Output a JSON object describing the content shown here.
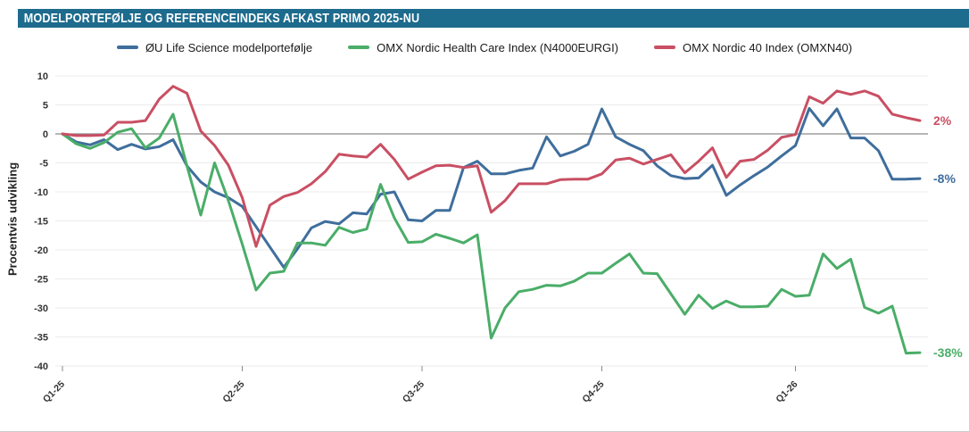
{
  "title": "MODELPORTEFØLJE OG REFERENCEINDEKS AFKAST PRIMO 2025-NU",
  "colors": {
    "title_bar": "#1d6b8d",
    "title_text": "#ffffff",
    "grid": "#ebebeb",
    "zero_line": "#8a8a8a",
    "axis_text": "#333333",
    "page_bottom_border": "#cccccc"
  },
  "chart_data": {
    "type": "line",
    "title": "Modelportefølje og referenceindeks afkast primo 2025-nu",
    "xlabel": "",
    "ylabel": "Procentvis udvikling",
    "ylim": [
      -40,
      10
    ],
    "yticks": [
      10,
      5,
      0,
      -5,
      -10,
      -15,
      -20,
      -25,
      -30,
      -35,
      -40
    ],
    "xtick_labels": [
      "Q1-25",
      "Q2-25",
      "Q3-25",
      "Q4-25",
      "Q1-26"
    ],
    "xtick_indices": [
      0,
      13,
      26,
      39,
      53
    ],
    "grid": true,
    "zero_line": true,
    "legend_position": "top-center",
    "x_unit": "weeks",
    "series": [
      {
        "name": "ØU Life Science modelportefølje",
        "color": "#3f6e9c",
        "end_label": "-8%",
        "final_value": -8,
        "values": [
          0,
          -1.4,
          -1.9,
          -1.0,
          -2.7,
          -1.8,
          -2.6,
          -2.2,
          -1.0,
          -5.5,
          -8.3,
          -10.0,
          -11.0,
          -12.5,
          -16.0,
          -19.5,
          -23.0,
          -19.8,
          -16.2,
          -15.1,
          -15.5,
          -13.6,
          -13.8,
          -10.4,
          -10.0,
          -14.8,
          -15.0,
          -13.2,
          -13.2,
          -5.8,
          -4.7,
          -6.9,
          -6.9,
          -6.3,
          -5.9,
          -0.5,
          -3.8,
          -3.0,
          -1.8,
          4.3,
          -0.5,
          -1.8,
          -2.9,
          -5.5,
          -7.2,
          -7.7,
          -7.6,
          -5.4,
          -10.6,
          -8.8,
          -7.2,
          -5.7,
          -3.8,
          -2.0,
          4.4,
          1.4,
          4.3,
          -0.7,
          -0.7,
          -2.9,
          -7.8,
          -7.8,
          -7.7
        ]
      },
      {
        "name": "OMX Nordic Health Care Index (N4000EURGI)",
        "color": "#4aad68",
        "end_label": "-38%",
        "final_value": -38,
        "values": [
          0,
          -1.7,
          -2.5,
          -1.5,
          0.3,
          0.9,
          -2.4,
          -0.7,
          3.4,
          -5.5,
          -14.0,
          -5.0,
          -11.5,
          -19.0,
          -26.9,
          -24.0,
          -23.7,
          -18.8,
          -18.8,
          -19.2,
          -16.1,
          -17.0,
          -16.4,
          -8.7,
          -14.5,
          -18.7,
          -18.6,
          -17.3,
          -18.0,
          -18.8,
          -17.4,
          -35.2,
          -30.0,
          -27.2,
          -26.8,
          -26.1,
          -26.2,
          -25.4,
          -24.0,
          -24.0,
          -22.3,
          -20.7,
          -24.0,
          -24.1,
          -27.6,
          -31.1,
          -27.8,
          -30.1,
          -28.8,
          -29.8,
          -29.8,
          -29.7,
          -26.8,
          -28.0,
          -27.8,
          -20.7,
          -23.2,
          -21.6,
          -29.9,
          -30.9,
          -29.7,
          -37.8,
          -37.7
        ]
      },
      {
        "name": "OMX Nordic 40 Index (OMXN40)",
        "color": "#c94f63",
        "end_label": "2%",
        "final_value": 2,
        "values": [
          0,
          -0.3,
          -0.3,
          -0.2,
          2.0,
          2.0,
          2.3,
          6.0,
          8.2,
          7.0,
          0.5,
          -2.0,
          -5.4,
          -11.0,
          -19.4,
          -12.3,
          -10.8,
          -10.1,
          -8.6,
          -6.5,
          -3.5,
          -3.8,
          -4.0,
          -1.8,
          -4.4,
          -7.8,
          -6.6,
          -5.5,
          -5.4,
          -5.8,
          -5.5,
          -13.5,
          -11.5,
          -8.6,
          -8.6,
          -8.6,
          -7.9,
          -7.8,
          -7.8,
          -6.9,
          -4.5,
          -4.2,
          -5.2,
          -4.4,
          -3.6,
          -6.7,
          -4.7,
          -2.4,
          -7.5,
          -4.7,
          -4.4,
          -2.8,
          -0.6,
          -0.1,
          6.4,
          5.3,
          7.4,
          6.8,
          7.4,
          6.5,
          3.4,
          2.8,
          2.3
        ]
      }
    ]
  }
}
